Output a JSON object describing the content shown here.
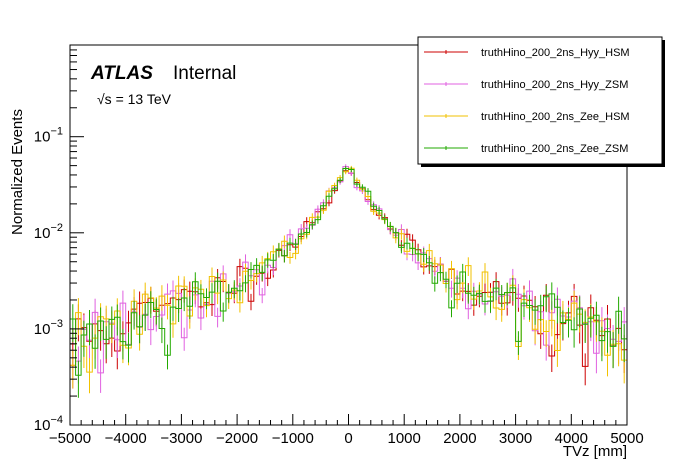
{
  "chart_data": {
    "type": "line",
    "style": "step-histogram",
    "xlabel": "TVz [mm]",
    "ylabel": "Normalized Events",
    "xlim": [
      -5000,
      5000
    ],
    "ylim": [
      0.0001,
      0.9
    ],
    "yscale": "log",
    "grid": false,
    "legend_position": "top-right",
    "x_ticks": [
      -5000,
      -4000,
      -3000,
      -2000,
      -1000,
      0,
      1000,
      2000,
      3000,
      4000,
      5000
    ],
    "x_tick_labels": [
      "−5000",
      "−4000",
      "−3000",
      "−2000",
      "−1000",
      "0",
      "1000",
      "2000",
      "3000",
      "4000",
      "5000"
    ],
    "y_ticks": [
      {
        "value": 0.0001,
        "base": "10",
        "exp": "−4"
      },
      {
        "value": 0.001,
        "base": "10",
        "exp": "−3"
      },
      {
        "value": 0.01,
        "base": "10",
        "exp": "−2"
      },
      {
        "value": 0.1,
        "base": "10",
        "exp": "−1"
      }
    ],
    "annotations": {
      "atlas": "ATLAS",
      "status": "Internal",
      "energy_sqrt": "√s",
      "energy_value": " = 13 TeV"
    },
    "model": {
      "bins": 100,
      "peak_value": 0.092,
      "core_halfwidth": 50,
      "inner_decay_mm": 380,
      "inner_amp": 0.042,
      "outer_decay_mm": 2200,
      "outer_amp": 0.0075
    },
    "series": [
      {
        "name": "truthHino_200_2ns_Hyy_HSM",
        "color": "#cc0000",
        "seed": 11
      },
      {
        "name": "truthHino_200_2ns_Hyy_ZSM",
        "color": "#e060e0",
        "seed": 23
      },
      {
        "name": "truthHino_200_2ns_Zee_HSM",
        "color": "#f2c200",
        "seed": 37
      },
      {
        "name": "truthHino_200_2ns_Zee_ZSM",
        "color": "#22aa00",
        "seed": 53
      }
    ]
  }
}
